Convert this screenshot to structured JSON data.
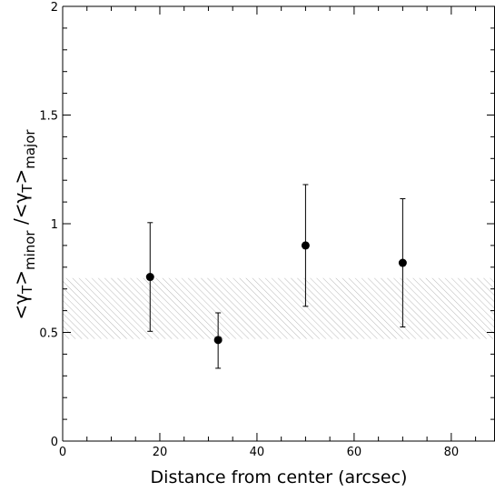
{
  "chart_data": {
    "type": "scatter",
    "title": "",
    "xlabel": "Distance from center (arcsec)",
    "ylabel": {
      "main": "<γ",
      "sub_minor": "T",
      "close_minor": ">",
      "minor": "minor",
      "slash": " /<γ",
      "sub_major": "T",
      "close_major": ">",
      "major": "major"
    },
    "xlim": [
      0,
      89
    ],
    "ylim": [
      0,
      2
    ],
    "x_ticks": [
      0,
      20,
      40,
      60,
      80
    ],
    "x_tick_labels": [
      "0",
      "20",
      "40",
      "60",
      "80"
    ],
    "y_ticks": [
      0,
      0.5,
      1,
      1.5,
      2
    ],
    "y_tick_labels": [
      "0",
      "0.5",
      "1",
      "1.5",
      "2"
    ],
    "x_minor_step": 5,
    "y_minor_step": 0.1,
    "grid": false,
    "band": {
      "ymin": 0.47,
      "ymax": 0.75,
      "pattern": "diagonal-hatch"
    },
    "series": [
      {
        "x": [
          18,
          32,
          50,
          70
        ],
        "y": [
          0.755,
          0.465,
          0.9,
          0.82
        ],
        "yerr_low": [
          0.505,
          0.335,
          0.62,
          0.525
        ],
        "yerr_high": [
          1.005,
          0.59,
          1.18,
          1.115
        ]
      }
    ],
    "colors": {
      "points": "#000000",
      "hatch": "#9a9a9a",
      "axes": "#000000"
    }
  }
}
